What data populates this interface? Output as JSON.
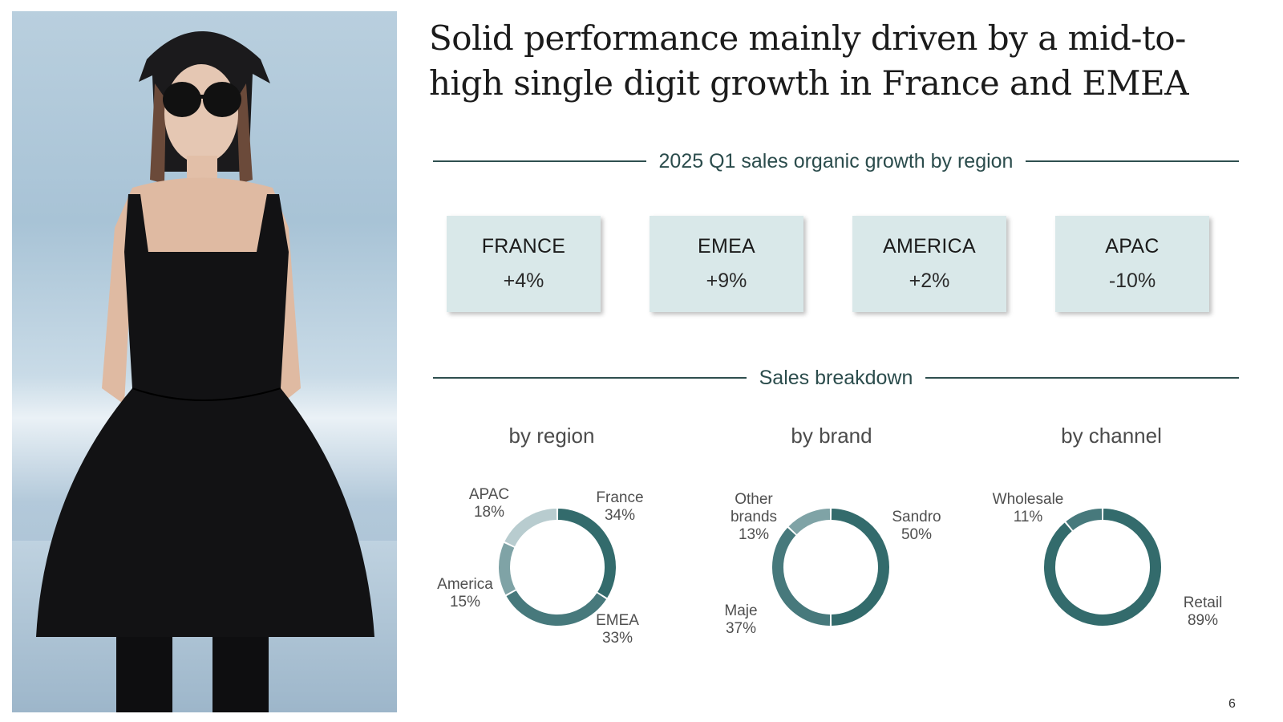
{
  "slide": {
    "title": "Solid performance mainly driven by a mid-to-high single digit growth in France and EMEA",
    "page_number": "6"
  },
  "growth_section": {
    "heading": "2025 Q1 sales organic growth by region",
    "cards": [
      {
        "region": "FRANCE",
        "value": "+4%"
      },
      {
        "region": "EMEA",
        "value": "+9%"
      },
      {
        "region": "AMERICA",
        "value": "+2%"
      },
      {
        "region": "APAC",
        "value": "-10%"
      }
    ]
  },
  "breakdown_section": {
    "heading": "Sales breakdown"
  },
  "colors": {
    "dark_teal": "#336b6c",
    "mid_teal": "#47797c",
    "muted_teal": "#7fa3a6",
    "light_grey_teal": "#b8cccf",
    "card_bg": "#d9e8e9"
  },
  "chart_data": [
    {
      "type": "pie",
      "subtitle": "by region",
      "slices": [
        {
          "name": "France",
          "value": 34,
          "label": "34%",
          "color": "#336b6c"
        },
        {
          "name": "EMEA",
          "value": 33,
          "label": "33%",
          "color": "#47797c"
        },
        {
          "name": "America",
          "value": 15,
          "label": "15%",
          "color": "#7fa3a6"
        },
        {
          "name": "APAC",
          "value": 18,
          "label": "18%",
          "color": "#b8cccf"
        }
      ]
    },
    {
      "type": "pie",
      "subtitle": "by brand",
      "slices": [
        {
          "name": "Sandro",
          "value": 50,
          "label": "50%",
          "color": "#336b6c"
        },
        {
          "name": "Maje",
          "value": 37,
          "label": "37%",
          "color": "#47797c"
        },
        {
          "name": "Other brands",
          "value": 13,
          "label": "13%",
          "color": "#7fa3a6"
        }
      ]
    },
    {
      "type": "pie",
      "subtitle": "by channel",
      "slices": [
        {
          "name": "Retail",
          "value": 89,
          "label": "89%",
          "color": "#336b6c"
        },
        {
          "name": "Wholesale",
          "value": 11,
          "label": "11%",
          "color": "#47797c"
        }
      ]
    }
  ]
}
